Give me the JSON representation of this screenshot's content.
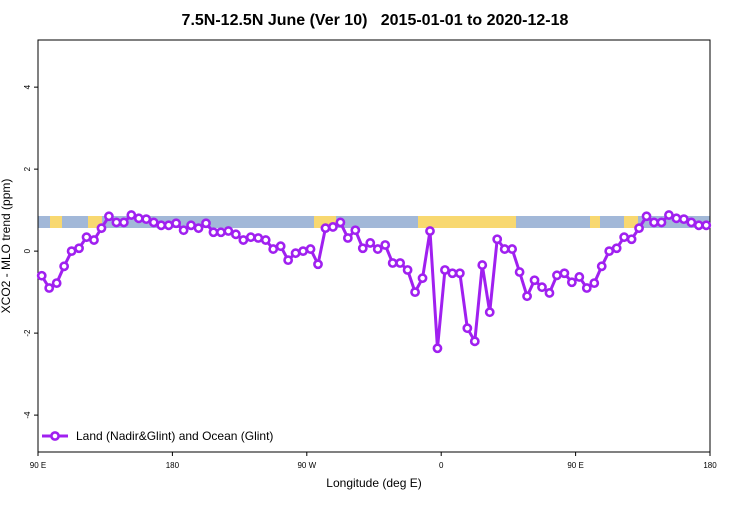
{
  "chart_data": {
    "type": "line",
    "title": "7.5N-12.5N June (Ver 10)   2015-01-01 to 2020-12-18",
    "x_label": "Longitude (deg E)",
    "y_label": "XCO2 - MLO trend (ppm)",
    "x": [
      92.5,
      97.5,
      102.5,
      107.5,
      112.5,
      117.5,
      122.5,
      127.5,
      132.5,
      137.5,
      142.5,
      147.5,
      152.5,
      157.5,
      162.5,
      167.5,
      172.5,
      177.5,
      182.5,
      187.5,
      192.5,
      197.5,
      202.5,
      207.5,
      212.5,
      217.5,
      222.5,
      227.5,
      232.5,
      237.5,
      242.5,
      247.5,
      252.5,
      257.5,
      262.5,
      267.5,
      272.5,
      277.5,
      282.5,
      287.5,
      292.5,
      297.5,
      302.5,
      307.5,
      312.5,
      317.5,
      322.5,
      327.5,
      332.5,
      337.5,
      342.5,
      347.5,
      352.5,
      357.5,
      362.5,
      367.5,
      372.5,
      377.5,
      382.5,
      387.5,
      392.5,
      397.5,
      402.5,
      407.5,
      412.5,
      417.5,
      422.5,
      427.5,
      432.5,
      437.5,
      442.5,
      447.5,
      452.5,
      457.5,
      462.5,
      467.5,
      472.5,
      477.5,
      482.5,
      487.5,
      492.5,
      497.5,
      502.5,
      507.5,
      512.5,
      517.5,
      522.5,
      527.5,
      532.5,
      537.5
    ],
    "series": [
      {
        "name": "Land (Nadir&Glint) and Ocean (Glint)",
        "color": "#a020f0",
        "values": [
          -0.6,
          -0.9,
          -0.78,
          -0.37,
          0.0,
          0.07,
          0.34,
          0.27,
          0.56,
          0.85,
          0.7,
          0.7,
          0.88,
          0.8,
          0.78,
          0.7,
          0.63,
          0.63,
          0.68,
          0.51,
          0.63,
          0.56,
          0.68,
          0.46,
          0.46,
          0.49,
          0.41,
          0.27,
          0.34,
          0.32,
          0.27,
          0.05,
          0.12,
          -0.22,
          -0.05,
          0.0,
          0.05,
          -0.32,
          0.56,
          0.59,
          0.7,
          0.32,
          0.51,
          0.07,
          0.2,
          0.05,
          0.15,
          -0.29,
          -0.29,
          -0.46,
          -1.0,
          -0.66,
          0.49,
          -2.37,
          -0.46,
          -0.54,
          -0.54,
          -1.88,
          -2.2,
          -0.34,
          -1.49,
          0.29,
          0.05,
          0.05,
          -0.51,
          -1.1,
          -0.71,
          -0.88,
          -1.02,
          -0.59,
          -0.54,
          -0.76,
          -0.63,
          -0.9,
          -0.78,
          -0.37,
          0.0,
          0.07,
          0.34,
          0.29,
          0.56,
          0.85,
          0.7,
          0.7,
          0.88,
          0.8,
          0.78,
          0.7,
          0.63,
          0.63
        ]
      }
    ],
    "xlim": [
      90,
      540
    ],
    "xticks": [
      {
        "value": 90,
        "label": "90 E"
      },
      180,
      {
        "value": 270,
        "label": "90 W"
      },
      {
        "value": 360,
        "label": "0"
      },
      {
        "value": 450,
        "label": "90 E"
      },
      {
        "value": 540,
        "label": "180"
      }
    ],
    "ylim": [
      -4.9,
      5.15
    ],
    "yticks": [
      -4,
      -2,
      0,
      2,
      4
    ],
    "legend_position": "bottom-left"
  }
}
